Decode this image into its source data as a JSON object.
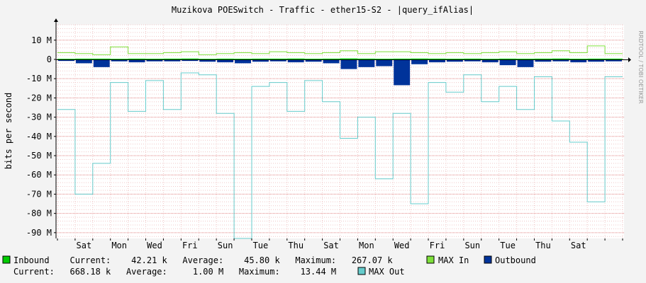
{
  "chart_data": {
    "type": "area",
    "title": "Muzikova POESwitch - Traffic - ether15-S2 - |query_ifAlias|",
    "ylabel": "bits per second",
    "xlabel": "",
    "watermark": "RRDTOOL / TOBI OETIKER",
    "ylim": [
      -93000000,
      18000000
    ],
    "y_ticks": [
      {
        "value": 10000000,
        "label": "10 M"
      },
      {
        "value": 0,
        "label": "0"
      },
      {
        "value": -10000000,
        "label": "-10 M"
      },
      {
        "value": -20000000,
        "label": "-20 M"
      },
      {
        "value": -30000000,
        "label": "-30 M"
      },
      {
        "value": -40000000,
        "label": "-40 M"
      },
      {
        "value": -50000000,
        "label": "-50 M"
      },
      {
        "value": -60000000,
        "label": "-60 M"
      },
      {
        "value": -70000000,
        "label": "-70 M"
      },
      {
        "value": -80000000,
        "label": "-80 M"
      },
      {
        "value": -90000000,
        "label": "-90 M"
      }
    ],
    "x_ticks": [
      "Sat",
      "Mon",
      "Wed",
      "Fri",
      "Sun",
      "Tue",
      "Thu",
      "Sat",
      "Mon",
      "Wed",
      "Fri",
      "Sun",
      "Tue",
      "Thu",
      "Sat"
    ],
    "x": [
      "Fri",
      "Sat",
      "Sun",
      "Mon",
      "Tue",
      "Wed",
      "Thu",
      "Fri",
      "Sat",
      "Sun",
      "Mon",
      "Tue",
      "Wed",
      "Thu",
      "Fri",
      "Sat",
      "Sun",
      "Mon",
      "Tue",
      "Wed",
      "Thu",
      "Fri",
      "Sat",
      "Sun",
      "Mon",
      "Tue",
      "Wed",
      "Thu",
      "Fri",
      "Sat",
      "Sun",
      "Mon"
    ],
    "grid": true,
    "series": [
      {
        "name": "Inbound",
        "color": "#00cc00",
        "values": [
          300000,
          400000,
          400000,
          300000,
          400000,
          350000,
          400000,
          450000,
          300000,
          400000,
          350000,
          400000,
          400000,
          450000,
          350000,
          400000,
          500000,
          400000,
          350000,
          400000,
          450000,
          400000,
          350000,
          400000,
          300000,
          400000,
          350000,
          400000,
          450000,
          350000,
          400000,
          400000
        ]
      },
      {
        "name": "MAX In",
        "color": "#7ee03a",
        "values": [
          3500000,
          3000000,
          2500000,
          6500000,
          3000000,
          3000000,
          3500000,
          4000000,
          2500000,
          3000000,
          3500000,
          3000000,
          4000000,
          3500000,
          3000000,
          3500000,
          4500000,
          3000000,
          4000000,
          4000000,
          3500000,
          3000000,
          3500000,
          3000000,
          3500000,
          4000000,
          3000000,
          3500000,
          4500000,
          3500000,
          7000000,
          3000000
        ]
      },
      {
        "name": "Outbound",
        "color": "#00339a",
        "values": [
          -800000,
          -2000000,
          -4000000,
          -1000000,
          -1500000,
          -1000000,
          -1000000,
          -800000,
          -1200000,
          -1500000,
          -2000000,
          -1200000,
          -1000000,
          -1500000,
          -1200000,
          -2000000,
          -5000000,
          -4000000,
          -3500000,
          -13400000,
          -2500000,
          -1500000,
          -1200000,
          -1000000,
          -1500000,
          -3000000,
          -4000000,
          -1200000,
          -1000000,
          -1500000,
          -1200000,
          -1000000
        ]
      },
      {
        "name": "MAX Out",
        "color": "#66cccc",
        "values": [
          -26000000,
          -70000000,
          -54000000,
          -12000000,
          -27000000,
          -11000000,
          -26000000,
          -7000000,
          -8000000,
          -28000000,
          -93000000,
          -14000000,
          -12000000,
          -27000000,
          -11000000,
          -22000000,
          -41000000,
          -30000000,
          -62000000,
          -28000000,
          -75000000,
          -12000000,
          -17000000,
          -8000000,
          -22000000,
          -14000000,
          -26000000,
          -9000000,
          -32000000,
          -43000000,
          -74000000,
          -9000000
        ]
      }
    ]
  },
  "legend": {
    "row1": [
      {
        "name": "Inbound",
        "color": "#00cc00",
        "text": "Inbound    Current:    42.21 k   Average:    45.80 k   Maximum:   267.07 k"
      },
      {
        "name": "MAX In",
        "color": "#7ee03a",
        "text": "MAX In"
      },
      {
        "name": "Outbound",
        "color": "#00339a",
        "text": "Outbound"
      }
    ],
    "row2": [
      {
        "name": "MAX Out",
        "color": "#66cccc",
        "text": "Current:   668.18 k   Average:     1.00 M   Maximum:    13.44 M"
      },
      {
        "name": "MAX Out",
        "color": "#66cccc",
        "text": "MAX Out"
      }
    ]
  }
}
